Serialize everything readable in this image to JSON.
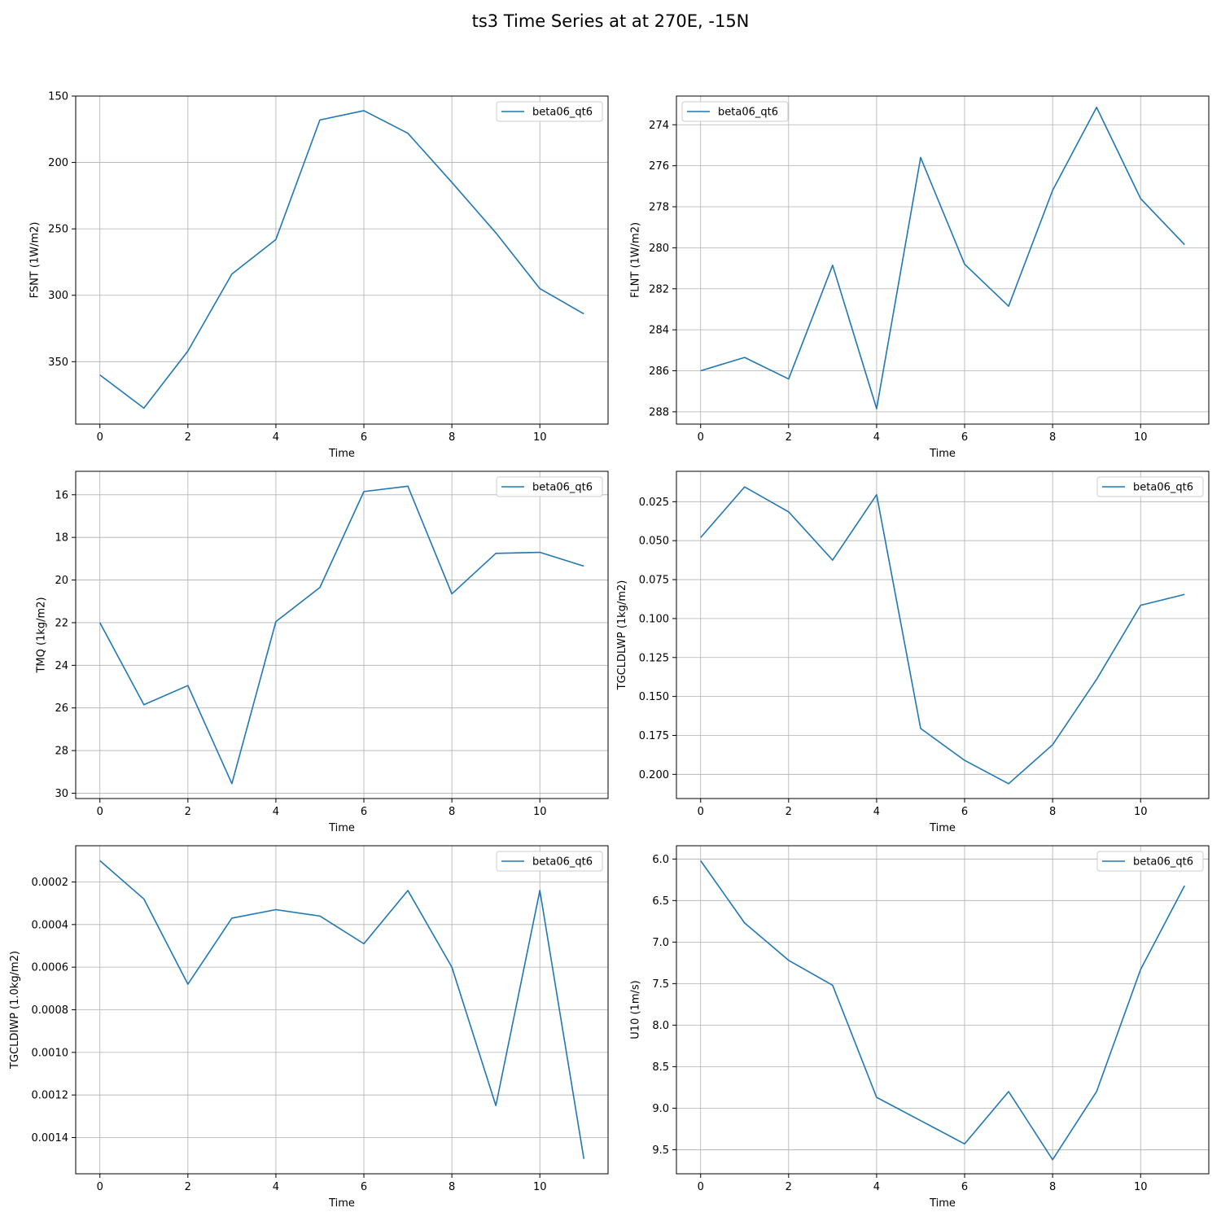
{
  "figure_title": "ts3 Time Series at at 270E, -15N",
  "chart_data": [
    {
      "type": "line",
      "xlabel": "Time",
      "ylabel": "FSNT (1W/m2)",
      "x": [
        0,
        1,
        2,
        3,
        4,
        5,
        6,
        7,
        8,
        9,
        10,
        11
      ],
      "series": [
        {
          "name": "beta06_qt6",
          "color": "#1f77b4",
          "values": [
            360,
            385,
            342,
            284,
            258,
            168,
            161,
            178,
            215,
            253,
            295,
            314
          ]
        }
      ],
      "xlim": [
        -0.55,
        11.55
      ],
      "ylim": [
        150,
        397
      ],
      "y_inverted": true,
      "xticks": [
        0,
        2,
        4,
        6,
        8,
        10
      ],
      "yticks": [
        150,
        200,
        250,
        300,
        350
      ],
      "ytick_labels": [
        "150",
        "200",
        "250",
        "300",
        "350"
      ],
      "grid": true,
      "legend_loc": "upper right"
    },
    {
      "type": "line",
      "xlabel": "Time",
      "ylabel": "FLNT (1W/m2)",
      "x": [
        0,
        1,
        2,
        3,
        4,
        5,
        6,
        7,
        8,
        9,
        10,
        11
      ],
      "series": [
        {
          "name": "beta06_qt6",
          "color": "#1f77b4",
          "values": [
            286.0,
            285.35,
            286.4,
            280.85,
            287.85,
            275.6,
            280.8,
            282.85,
            277.2,
            273.15,
            277.6,
            279.85
          ]
        }
      ],
      "xlim": [
        -0.55,
        11.55
      ],
      "ylim": [
        272.6,
        288.6
      ],
      "y_inverted": true,
      "xticks": [
        0,
        2,
        4,
        6,
        8,
        10
      ],
      "yticks": [
        274,
        276,
        278,
        280,
        282,
        284,
        286,
        288
      ],
      "ytick_labels": [
        "274",
        "276",
        "278",
        "280",
        "282",
        "284",
        "286",
        "288"
      ],
      "grid": true,
      "legend_loc": "upper left"
    },
    {
      "type": "line",
      "xlabel": "Time",
      "ylabel": "TMQ (1kg/m2)",
      "x": [
        0,
        1,
        2,
        3,
        4,
        5,
        6,
        7,
        8,
        9,
        10,
        11
      ],
      "series": [
        {
          "name": "beta06_qt6",
          "color": "#1f77b4",
          "values": [
            22.0,
            25.85,
            24.95,
            29.55,
            21.95,
            20.35,
            15.85,
            15.6,
            20.65,
            18.75,
            18.7,
            19.35
          ]
        }
      ],
      "xlim": [
        -0.55,
        11.55
      ],
      "ylim": [
        14.9,
        30.25
      ],
      "y_inverted": true,
      "xticks": [
        0,
        2,
        4,
        6,
        8,
        10
      ],
      "yticks": [
        16,
        18,
        20,
        22,
        24,
        26,
        28,
        30
      ],
      "ytick_labels": [
        "16",
        "18",
        "20",
        "22",
        "24",
        "26",
        "28",
        "30"
      ],
      "grid": true,
      "legend_loc": "upper right"
    },
    {
      "type": "line",
      "xlabel": "Time",
      "ylabel": "TGCLDLWP (1kg/m2)",
      "x": [
        0,
        1,
        2,
        3,
        4,
        5,
        6,
        7,
        8,
        9,
        10,
        11
      ],
      "series": [
        {
          "name": "beta06_qt6",
          "color": "#1f77b4",
          "values": [
            0.048,
            0.0155,
            0.0315,
            0.0625,
            0.0205,
            0.1705,
            0.191,
            0.206,
            0.181,
            0.139,
            0.0915,
            0.0845
          ]
        }
      ],
      "xlim": [
        -0.55,
        11.55
      ],
      "ylim": [
        0.0055,
        0.2155
      ],
      "y_inverted": true,
      "xticks": [
        0,
        2,
        4,
        6,
        8,
        10
      ],
      "yticks": [
        0.025,
        0.05,
        0.075,
        0.1,
        0.125,
        0.15,
        0.175,
        0.2
      ],
      "ytick_labels": [
        "0.025",
        "0.050",
        "0.075",
        "0.100",
        "0.125",
        "0.150",
        "0.175",
        "0.200"
      ],
      "grid": true,
      "legend_loc": "upper right"
    },
    {
      "type": "line",
      "xlabel": "Time",
      "ylabel": "TGCLDIWP (1.0kg/m2)",
      "x": [
        0,
        1,
        2,
        3,
        4,
        5,
        6,
        7,
        8,
        9,
        10,
        11
      ],
      "series": [
        {
          "name": "beta06_qt6",
          "color": "#1f77b4",
          "values": [
            0.0001,
            0.00028,
            0.00068,
            0.00037,
            0.00033,
            0.00036,
            0.00049,
            0.00024,
            0.0006,
            0.00125,
            0.00024,
            0.0015
          ]
        }
      ],
      "xlim": [
        -0.55,
        11.55
      ],
      "ylim": [
        3e-05,
        0.00157
      ],
      "y_inverted": true,
      "xticks": [
        0,
        2,
        4,
        6,
        8,
        10
      ],
      "yticks": [
        0.0002,
        0.0004,
        0.0006,
        0.0008,
        0.001,
        0.0012,
        0.0014
      ],
      "ytick_labels": [
        "0.0002",
        "0.0004",
        "0.0006",
        "0.0008",
        "0.0010",
        "0.0012",
        "0.0014"
      ],
      "grid": true,
      "legend_loc": "upper right"
    },
    {
      "type": "line",
      "xlabel": "Time",
      "ylabel": "U10 (1m/s)",
      "x": [
        0,
        1,
        2,
        3,
        4,
        5,
        6,
        7,
        8,
        9,
        10,
        11
      ],
      "series": [
        {
          "name": "beta06_qt6",
          "color": "#1f77b4",
          "values": [
            6.02,
            6.77,
            7.22,
            7.52,
            8.87,
            9.15,
            9.43,
            8.8,
            9.62,
            8.8,
            7.33,
            6.32
          ]
        }
      ],
      "xlim": [
        -0.55,
        11.55
      ],
      "ylim": [
        5.84,
        9.79
      ],
      "y_inverted": true,
      "xticks": [
        0,
        2,
        4,
        6,
        8,
        10
      ],
      "yticks": [
        6.0,
        6.5,
        7.0,
        7.5,
        8.0,
        8.5,
        9.0,
        9.5
      ],
      "ytick_labels": [
        "6.0",
        "6.5",
        "7.0",
        "7.5",
        "8.0",
        "8.5",
        "9.0",
        "9.5"
      ],
      "grid": true,
      "legend_loc": "upper right"
    }
  ]
}
